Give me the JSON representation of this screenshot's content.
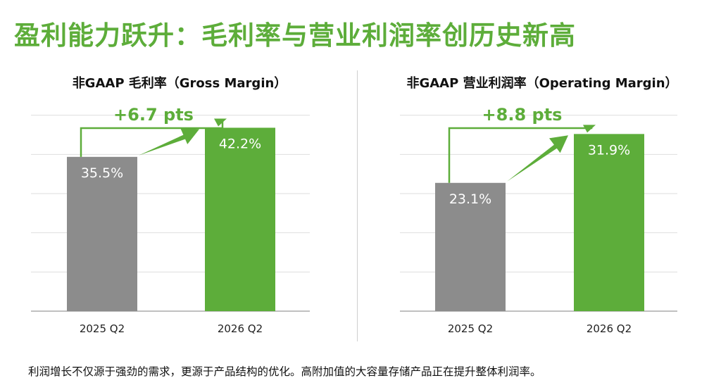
{
  "page_title": "盈利能力跃升：毛利率与营业利润率创历史新高",
  "footnote": "利润增长不仅源于强劲的需求，更源于产品结构的优化。高附加值的大容量存储产品正在提升整体利润率。",
  "colors": {
    "accent": "#5dad3a",
    "bar_prior": "#8c8c8c",
    "bar_current": "#5dad3a",
    "gridline": "#dedede"
  },
  "chart_data": [
    {
      "type": "bar",
      "title": "非GAAP 毛利率（Gross Margin）",
      "categories": [
        "2025 Q2",
        "2026 Q2"
      ],
      "values": [
        35.5,
        42.2
      ],
      "data_labels": [
        "35.5%",
        "42.2%"
      ],
      "change_label": "+6.7 pts",
      "ylim": [
        0,
        46
      ],
      "grid": true
    },
    {
      "type": "bar",
      "title": "非GAAP 营业利润率（Operating Margin）",
      "categories": [
        "2025 Q2",
        "2026 Q2"
      ],
      "values": [
        23.1,
        31.9
      ],
      "data_labels": [
        "23.1%",
        "31.9%"
      ],
      "change_label": "+8.8 pts",
      "ylim": [
        0,
        36
      ],
      "grid": true
    }
  ]
}
